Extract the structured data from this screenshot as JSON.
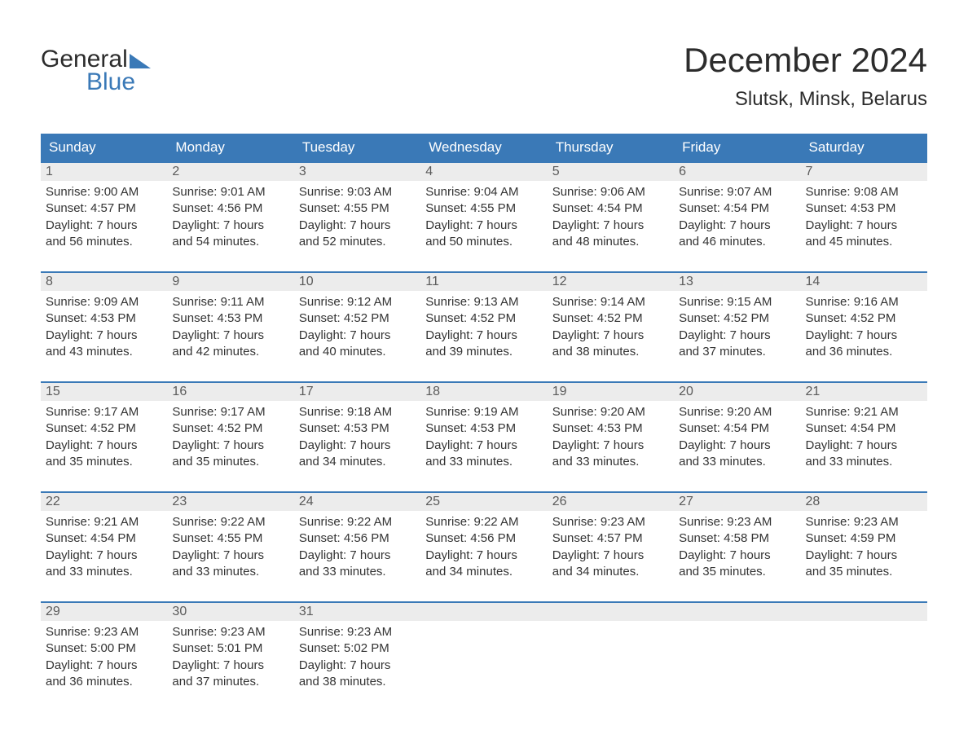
{
  "brand": {
    "word1": "General",
    "word2": "Blue",
    "accent_color": "#3a79b7"
  },
  "title": "December 2024",
  "location": "Slutsk, Minsk, Belarus",
  "colors": {
    "header_bg": "#3a79b7",
    "header_text": "#ffffff",
    "daynum_bg": "#ececec",
    "daynum_text": "#5a5a5a",
    "body_text": "#333333",
    "page_bg": "#ffffff",
    "week_border": "#3a79b7"
  },
  "typography": {
    "title_fontsize": 42,
    "location_fontsize": 24,
    "header_fontsize": 17,
    "daynum_fontsize": 16,
    "body_fontsize": 15
  },
  "day_headers": [
    "Sunday",
    "Monday",
    "Tuesday",
    "Wednesday",
    "Thursday",
    "Friday",
    "Saturday"
  ],
  "weeks": [
    [
      {
        "n": "1",
        "sunrise": "Sunrise: 9:00 AM",
        "sunset": "Sunset: 4:57 PM",
        "d1": "Daylight: 7 hours",
        "d2": "and 56 minutes."
      },
      {
        "n": "2",
        "sunrise": "Sunrise: 9:01 AM",
        "sunset": "Sunset: 4:56 PM",
        "d1": "Daylight: 7 hours",
        "d2": "and 54 minutes."
      },
      {
        "n": "3",
        "sunrise": "Sunrise: 9:03 AM",
        "sunset": "Sunset: 4:55 PM",
        "d1": "Daylight: 7 hours",
        "d2": "and 52 minutes."
      },
      {
        "n": "4",
        "sunrise": "Sunrise: 9:04 AM",
        "sunset": "Sunset: 4:55 PM",
        "d1": "Daylight: 7 hours",
        "d2": "and 50 minutes."
      },
      {
        "n": "5",
        "sunrise": "Sunrise: 9:06 AM",
        "sunset": "Sunset: 4:54 PM",
        "d1": "Daylight: 7 hours",
        "d2": "and 48 minutes."
      },
      {
        "n": "6",
        "sunrise": "Sunrise: 9:07 AM",
        "sunset": "Sunset: 4:54 PM",
        "d1": "Daylight: 7 hours",
        "d2": "and 46 minutes."
      },
      {
        "n": "7",
        "sunrise": "Sunrise: 9:08 AM",
        "sunset": "Sunset: 4:53 PM",
        "d1": "Daylight: 7 hours",
        "d2": "and 45 minutes."
      }
    ],
    [
      {
        "n": "8",
        "sunrise": "Sunrise: 9:09 AM",
        "sunset": "Sunset: 4:53 PM",
        "d1": "Daylight: 7 hours",
        "d2": "and 43 minutes."
      },
      {
        "n": "9",
        "sunrise": "Sunrise: 9:11 AM",
        "sunset": "Sunset: 4:53 PM",
        "d1": "Daylight: 7 hours",
        "d2": "and 42 minutes."
      },
      {
        "n": "10",
        "sunrise": "Sunrise: 9:12 AM",
        "sunset": "Sunset: 4:52 PM",
        "d1": "Daylight: 7 hours",
        "d2": "and 40 minutes."
      },
      {
        "n": "11",
        "sunrise": "Sunrise: 9:13 AM",
        "sunset": "Sunset: 4:52 PM",
        "d1": "Daylight: 7 hours",
        "d2": "and 39 minutes."
      },
      {
        "n": "12",
        "sunrise": "Sunrise: 9:14 AM",
        "sunset": "Sunset: 4:52 PM",
        "d1": "Daylight: 7 hours",
        "d2": "and 38 minutes."
      },
      {
        "n": "13",
        "sunrise": "Sunrise: 9:15 AM",
        "sunset": "Sunset: 4:52 PM",
        "d1": "Daylight: 7 hours",
        "d2": "and 37 minutes."
      },
      {
        "n": "14",
        "sunrise": "Sunrise: 9:16 AM",
        "sunset": "Sunset: 4:52 PM",
        "d1": "Daylight: 7 hours",
        "d2": "and 36 minutes."
      }
    ],
    [
      {
        "n": "15",
        "sunrise": "Sunrise: 9:17 AM",
        "sunset": "Sunset: 4:52 PM",
        "d1": "Daylight: 7 hours",
        "d2": "and 35 minutes."
      },
      {
        "n": "16",
        "sunrise": "Sunrise: 9:17 AM",
        "sunset": "Sunset: 4:52 PM",
        "d1": "Daylight: 7 hours",
        "d2": "and 35 minutes."
      },
      {
        "n": "17",
        "sunrise": "Sunrise: 9:18 AM",
        "sunset": "Sunset: 4:53 PM",
        "d1": "Daylight: 7 hours",
        "d2": "and 34 minutes."
      },
      {
        "n": "18",
        "sunrise": "Sunrise: 9:19 AM",
        "sunset": "Sunset: 4:53 PM",
        "d1": "Daylight: 7 hours",
        "d2": "and 33 minutes."
      },
      {
        "n": "19",
        "sunrise": "Sunrise: 9:20 AM",
        "sunset": "Sunset: 4:53 PM",
        "d1": "Daylight: 7 hours",
        "d2": "and 33 minutes."
      },
      {
        "n": "20",
        "sunrise": "Sunrise: 9:20 AM",
        "sunset": "Sunset: 4:54 PM",
        "d1": "Daylight: 7 hours",
        "d2": "and 33 minutes."
      },
      {
        "n": "21",
        "sunrise": "Sunrise: 9:21 AM",
        "sunset": "Sunset: 4:54 PM",
        "d1": "Daylight: 7 hours",
        "d2": "and 33 minutes."
      }
    ],
    [
      {
        "n": "22",
        "sunrise": "Sunrise: 9:21 AM",
        "sunset": "Sunset: 4:54 PM",
        "d1": "Daylight: 7 hours",
        "d2": "and 33 minutes."
      },
      {
        "n": "23",
        "sunrise": "Sunrise: 9:22 AM",
        "sunset": "Sunset: 4:55 PM",
        "d1": "Daylight: 7 hours",
        "d2": "and 33 minutes."
      },
      {
        "n": "24",
        "sunrise": "Sunrise: 9:22 AM",
        "sunset": "Sunset: 4:56 PM",
        "d1": "Daylight: 7 hours",
        "d2": "and 33 minutes."
      },
      {
        "n": "25",
        "sunrise": "Sunrise: 9:22 AM",
        "sunset": "Sunset: 4:56 PM",
        "d1": "Daylight: 7 hours",
        "d2": "and 34 minutes."
      },
      {
        "n": "26",
        "sunrise": "Sunrise: 9:23 AM",
        "sunset": "Sunset: 4:57 PM",
        "d1": "Daylight: 7 hours",
        "d2": "and 34 minutes."
      },
      {
        "n": "27",
        "sunrise": "Sunrise: 9:23 AM",
        "sunset": "Sunset: 4:58 PM",
        "d1": "Daylight: 7 hours",
        "d2": "and 35 minutes."
      },
      {
        "n": "28",
        "sunrise": "Sunrise: 9:23 AM",
        "sunset": "Sunset: 4:59 PM",
        "d1": "Daylight: 7 hours",
        "d2": "and 35 minutes."
      }
    ],
    [
      {
        "n": "29",
        "sunrise": "Sunrise: 9:23 AM",
        "sunset": "Sunset: 5:00 PM",
        "d1": "Daylight: 7 hours",
        "d2": "and 36 minutes."
      },
      {
        "n": "30",
        "sunrise": "Sunrise: 9:23 AM",
        "sunset": "Sunset: 5:01 PM",
        "d1": "Daylight: 7 hours",
        "d2": "and 37 minutes."
      },
      {
        "n": "31",
        "sunrise": "Sunrise: 9:23 AM",
        "sunset": "Sunset: 5:02 PM",
        "d1": "Daylight: 7 hours",
        "d2": "and 38 minutes."
      },
      {
        "n": "",
        "sunrise": "",
        "sunset": "",
        "d1": "",
        "d2": "",
        "empty": true
      },
      {
        "n": "",
        "sunrise": "",
        "sunset": "",
        "d1": "",
        "d2": "",
        "empty": true
      },
      {
        "n": "",
        "sunrise": "",
        "sunset": "",
        "d1": "",
        "d2": "",
        "empty": true
      },
      {
        "n": "",
        "sunrise": "",
        "sunset": "",
        "d1": "",
        "d2": "",
        "empty": true
      }
    ]
  ]
}
